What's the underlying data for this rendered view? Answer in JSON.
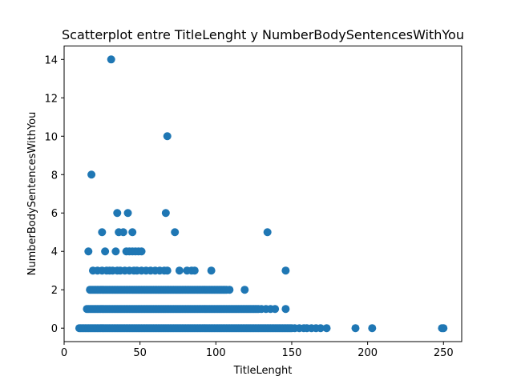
{
  "chart_data": {
    "type": "scatter",
    "title": "Scatterplot entre TitleLenght y NumberBodySentencesWithYou",
    "xlabel": "TitleLenght",
    "ylabel": "NumberBodySentencesWithYou",
    "xlim": [
      0,
      262
    ],
    "ylim": [
      -0.7,
      14.7
    ],
    "xticks": [
      0,
      50,
      100,
      150,
      200,
      250
    ],
    "yticks": [
      0,
      2,
      4,
      6,
      8,
      10,
      12,
      14
    ],
    "grid": false,
    "color": "#1f77b4",
    "row_ranges": [
      {
        "y": 0,
        "x_from": 10,
        "x_to": 150
      },
      {
        "y": 1,
        "x_from": 15,
        "x_to": 128
      },
      {
        "y": 2,
        "x_from": 17,
        "x_to": 107
      }
    ],
    "points": [
      {
        "x": 152,
        "y": 0
      },
      {
        "x": 155,
        "y": 0
      },
      {
        "x": 158,
        "y": 0
      },
      {
        "x": 160,
        "y": 0
      },
      {
        "x": 163,
        "y": 0
      },
      {
        "x": 166,
        "y": 0
      },
      {
        "x": 169,
        "y": 0
      },
      {
        "x": 173,
        "y": 0
      },
      {
        "x": 192,
        "y": 0
      },
      {
        "x": 203,
        "y": 0
      },
      {
        "x": 249,
        "y": 0
      },
      {
        "x": 250,
        "y": 0
      },
      {
        "x": 130,
        "y": 1
      },
      {
        "x": 133,
        "y": 1
      },
      {
        "x": 136,
        "y": 1
      },
      {
        "x": 139,
        "y": 1
      },
      {
        "x": 146,
        "y": 1
      },
      {
        "x": 109,
        "y": 2
      },
      {
        "x": 119,
        "y": 2
      },
      {
        "x": 19,
        "y": 3
      },
      {
        "x": 22,
        "y": 3
      },
      {
        "x": 25,
        "y": 3
      },
      {
        "x": 28,
        "y": 3
      },
      {
        "x": 30,
        "y": 3
      },
      {
        "x": 32,
        "y": 3
      },
      {
        "x": 35,
        "y": 3
      },
      {
        "x": 37,
        "y": 3
      },
      {
        "x": 40,
        "y": 3
      },
      {
        "x": 43,
        "y": 3
      },
      {
        "x": 46,
        "y": 3
      },
      {
        "x": 48,
        "y": 3
      },
      {
        "x": 51,
        "y": 3
      },
      {
        "x": 54,
        "y": 3
      },
      {
        "x": 57,
        "y": 3
      },
      {
        "x": 60,
        "y": 3
      },
      {
        "x": 63,
        "y": 3
      },
      {
        "x": 66,
        "y": 3
      },
      {
        "x": 68,
        "y": 3
      },
      {
        "x": 76,
        "y": 3
      },
      {
        "x": 81,
        "y": 3
      },
      {
        "x": 84,
        "y": 3
      },
      {
        "x": 86,
        "y": 3
      },
      {
        "x": 97,
        "y": 3
      },
      {
        "x": 146,
        "y": 3
      },
      {
        "x": 16,
        "y": 4
      },
      {
        "x": 27,
        "y": 4
      },
      {
        "x": 34,
        "y": 4
      },
      {
        "x": 41,
        "y": 4
      },
      {
        "x": 43,
        "y": 4
      },
      {
        "x": 45,
        "y": 4
      },
      {
        "x": 47,
        "y": 4
      },
      {
        "x": 49,
        "y": 4
      },
      {
        "x": 51,
        "y": 4
      },
      {
        "x": 25,
        "y": 5
      },
      {
        "x": 36,
        "y": 5
      },
      {
        "x": 39,
        "y": 5
      },
      {
        "x": 45,
        "y": 5
      },
      {
        "x": 73,
        "y": 5
      },
      {
        "x": 134,
        "y": 5
      },
      {
        "x": 35,
        "y": 6
      },
      {
        "x": 42,
        "y": 6
      },
      {
        "x": 67,
        "y": 6
      },
      {
        "x": 18,
        "y": 8
      },
      {
        "x": 68,
        "y": 10
      },
      {
        "x": 31,
        "y": 14
      }
    ]
  }
}
